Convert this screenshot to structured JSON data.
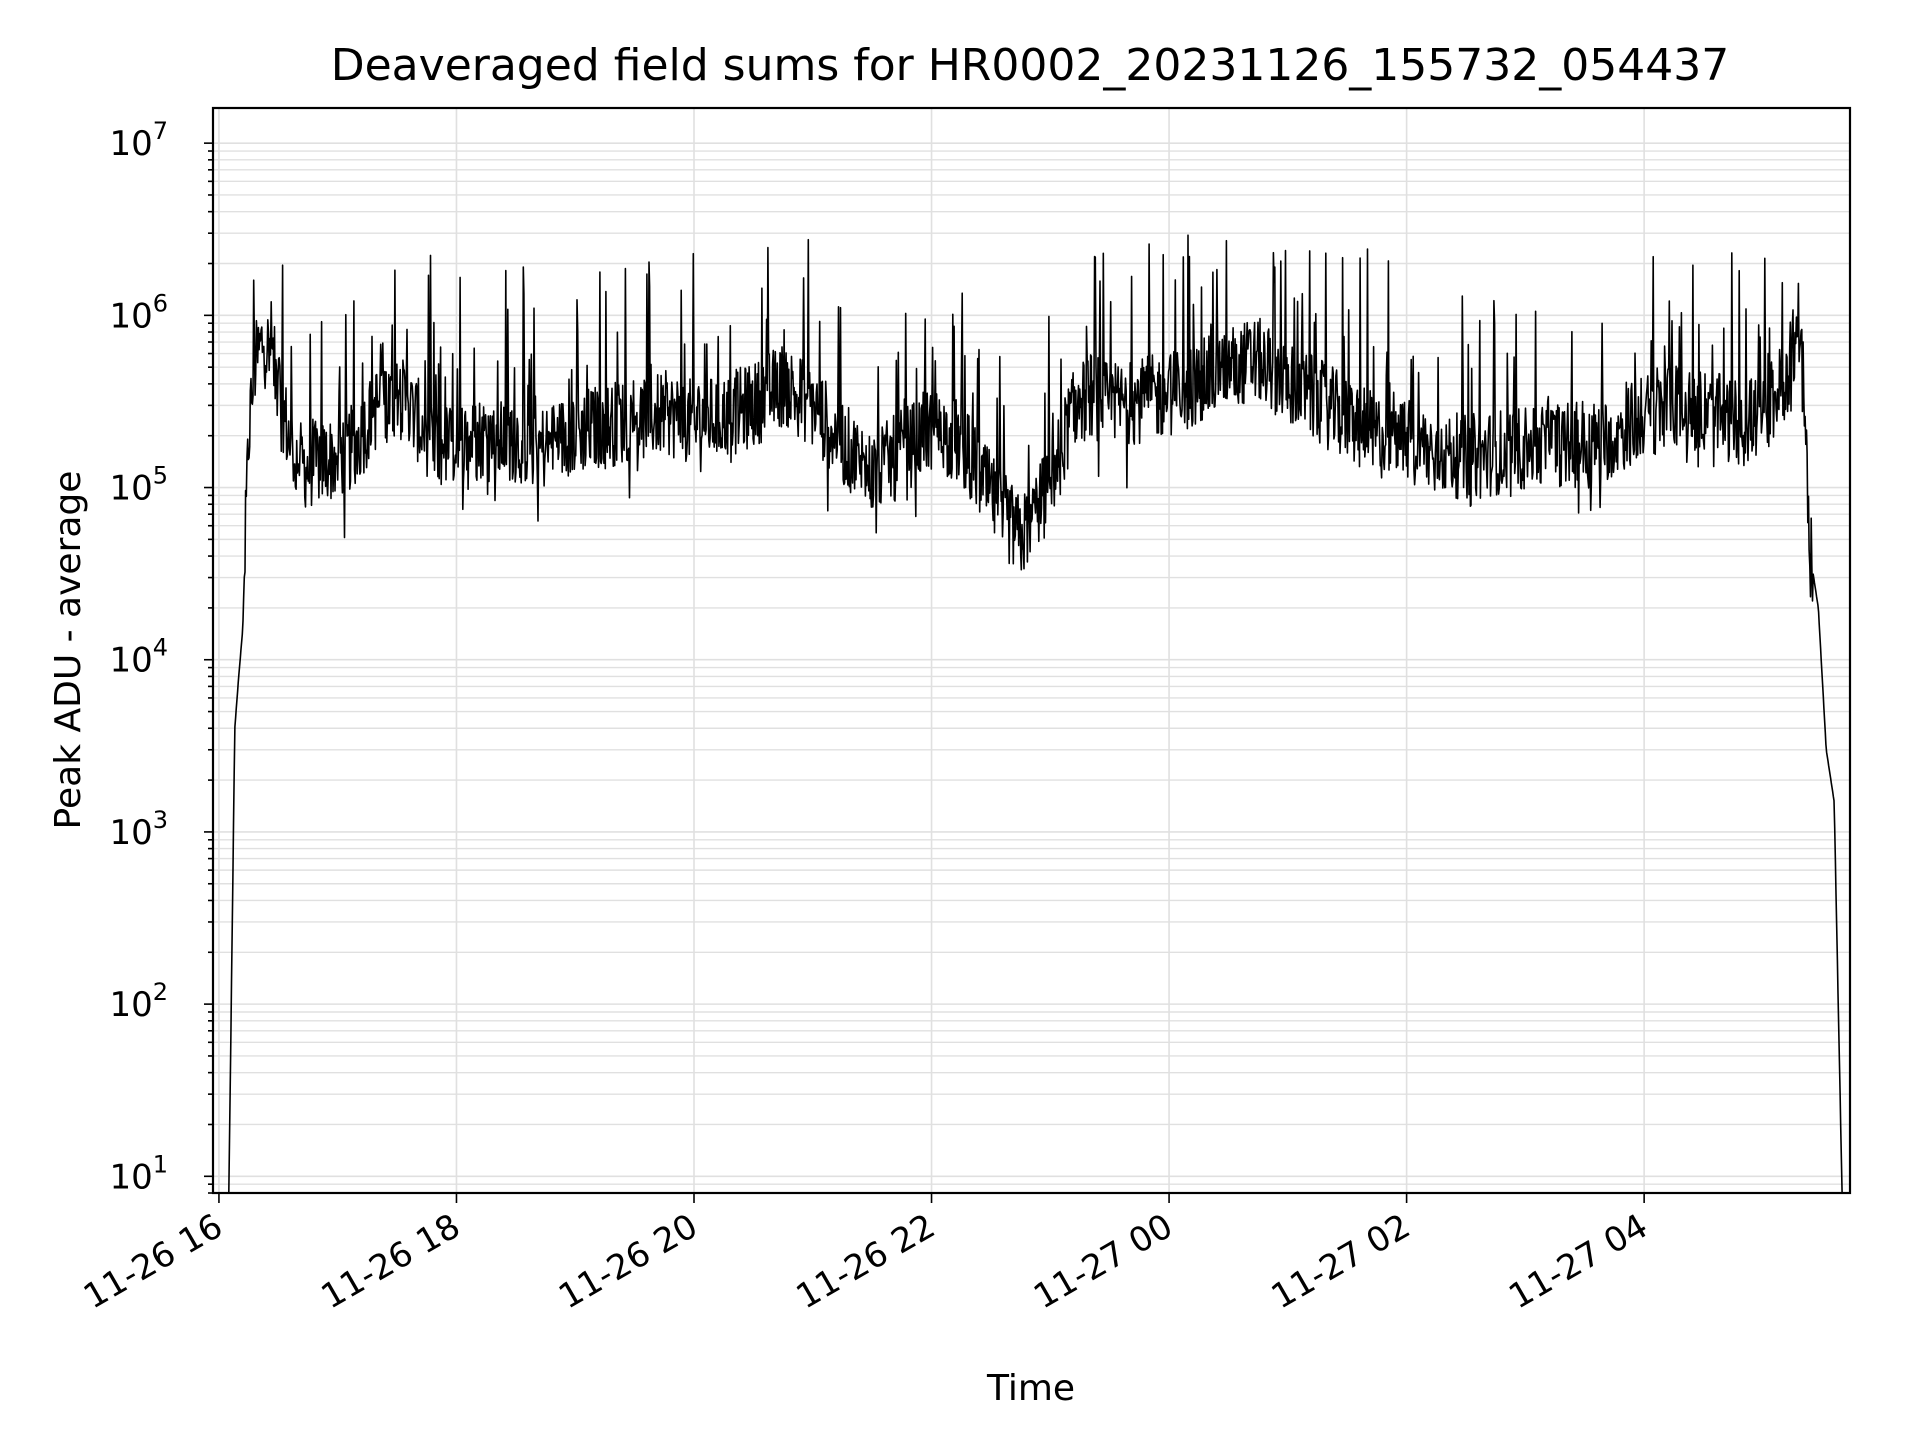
{
  "chart_data": {
    "type": "line",
    "title": "Deaveraged field sums for HR0002_20231126_155732_054437",
    "xlabel": "Time",
    "ylabel": "Peak ADU - average",
    "yscale": "log",
    "xlim": [
      "2023-11-26 15:57",
      "2023-11-27 05:44"
    ],
    "ylim": [
      8,
      16000000
    ],
    "x_ticks": [
      "11-26 16",
      "11-26 18",
      "11-26 20",
      "11-26 22",
      "11-27 00",
      "11-27 02",
      "11-27 04"
    ],
    "y_ticks": [
      {
        "base": "10",
        "exp": "1"
      },
      {
        "base": "10",
        "exp": "2"
      },
      {
        "base": "10",
        "exp": "3"
      },
      {
        "base": "10",
        "exp": "4"
      },
      {
        "base": "10",
        "exp": "5"
      },
      {
        "base": "10",
        "exp": "6"
      },
      {
        "base": "10",
        "exp": "7"
      }
    ],
    "grid": true,
    "line_color": "#000000",
    "grid_color": "#e0e0e0",
    "series": [
      {
        "x": [
          "2023-11-26 16:05",
          "2023-11-26 16:08",
          "2023-11-26 16:10",
          "2023-11-26 16:12",
          "2023-11-26 16:15",
          "2023-11-26 16:18",
          "2023-11-26 16:22",
          "2023-11-26 16:26",
          "2023-11-26 16:30",
          "2023-11-26 16:35",
          "2023-11-26 16:40",
          "2023-11-26 16:45",
          "2023-11-26 16:50",
          "2023-11-26 17:00",
          "2023-11-26 17:10",
          "2023-11-26 17:20",
          "2023-11-26 17:30",
          "2023-11-26 17:40",
          "2023-11-26 17:50",
          "2023-11-26 18:00",
          "2023-11-26 18:15",
          "2023-11-26 18:30",
          "2023-11-26 18:45",
          "2023-11-26 19:00",
          "2023-11-26 19:15",
          "2023-11-26 19:30",
          "2023-11-26 19:45",
          "2023-11-26 20:00",
          "2023-11-26 20:15",
          "2023-11-26 20:30",
          "2023-11-26 20:45",
          "2023-11-26 21:00",
          "2023-11-26 21:15",
          "2023-11-26 21:30",
          "2023-11-26 21:45",
          "2023-11-26 22:00",
          "2023-11-26 22:15",
          "2023-11-26 22:30",
          "2023-11-26 22:45",
          "2023-11-26 23:00",
          "2023-11-26 23:10",
          "2023-11-26 23:20",
          "2023-11-26 23:30",
          "2023-11-26 23:45",
          "2023-11-27 00:00",
          "2023-11-27 00:15",
          "2023-11-27 00:30",
          "2023-11-27 00:45",
          "2023-11-27 01:00",
          "2023-11-27 01:15",
          "2023-11-27 01:30",
          "2023-11-27 01:45",
          "2023-11-27 02:00",
          "2023-11-27 02:15",
          "2023-11-27 02:30",
          "2023-11-27 02:45",
          "2023-11-27 03:00",
          "2023-11-27 03:15",
          "2023-11-27 03:30",
          "2023-11-27 03:45",
          "2023-11-27 04:00",
          "2023-11-27 04:15",
          "2023-11-27 04:30",
          "2023-11-27 04:45",
          "2023-11-27 05:00",
          "2023-11-27 05:10",
          "2023-11-27 05:15",
          "2023-11-27 05:18",
          "2023-11-27 05:20",
          "2023-11-27 05:24",
          "2023-11-27 05:28",
          "2023-11-27 05:32",
          "2023-11-27 05:36",
          "2023-11-27 05:40"
        ],
        "y": [
          8,
          4000,
          8000,
          15000,
          200000,
          500000,
          700000,
          600000,
          400000,
          200000,
          140000,
          130000,
          140000,
          150000,
          180000,
          300000,
          350000,
          250000,
          170000,
          180000,
          200000,
          190000,
          170000,
          210000,
          230000,
          250000,
          270000,
          240000,
          260000,
          300000,
          400000,
          300000,
          180000,
          120000,
          160000,
          220000,
          180000,
          90000,
          50000,
          100000,
          250000,
          350000,
          300000,
          320000,
          350000,
          400000,
          500000,
          550000,
          420000,
          320000,
          250000,
          200000,
          180000,
          160000,
          150000,
          160000,
          170000,
          180000,
          175000,
          200000,
          260000,
          300000,
          280000,
          240000,
          260000,
          400000,
          600000,
          900000,
          500000,
          40000,
          20000,
          3000,
          1500,
          8
        ]
      }
    ]
  }
}
